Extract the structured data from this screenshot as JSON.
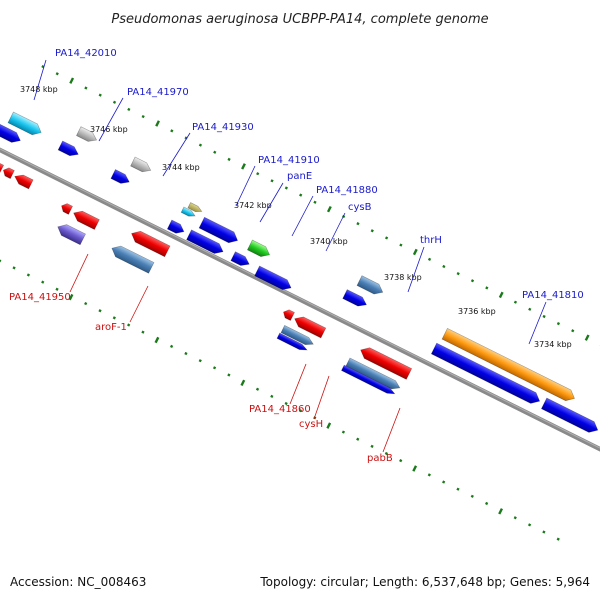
{
  "title": "Pseudomonas aeruginosa UCBPP-PA14, complete genome",
  "footer": {
    "accession": "Accession: NC_008463",
    "summary": "Topology: circular; Length: 6,537,648 bp; Genes: 5,964"
  },
  "ticks": [
    "3748 kbp",
    "3746 kbp",
    "3744 kbp",
    "3742 kbp",
    "3740 kbp",
    "3738 kbp",
    "3736 kbp",
    "3734 kbp"
  ],
  "forward_labels": [
    "PA14_42010",
    "PA14_41970",
    "PA14_41930",
    "PA14_41910",
    "panE",
    "PA14_41880",
    "cysB",
    "thrH",
    "PA14_41810"
  ],
  "reverse_labels": [
    "PA14_41950",
    "aroF-1",
    "PA14_41860",
    "cysH",
    "pabB"
  ],
  "colors": {
    "backbone": "#808080",
    "forward_cds": "#0000ee",
    "reverse_cds": "#ee0000",
    "label_forward": "#1a1acc",
    "label_reverse": "#cc1111",
    "tick_marks": "#1a7a1a"
  }
}
